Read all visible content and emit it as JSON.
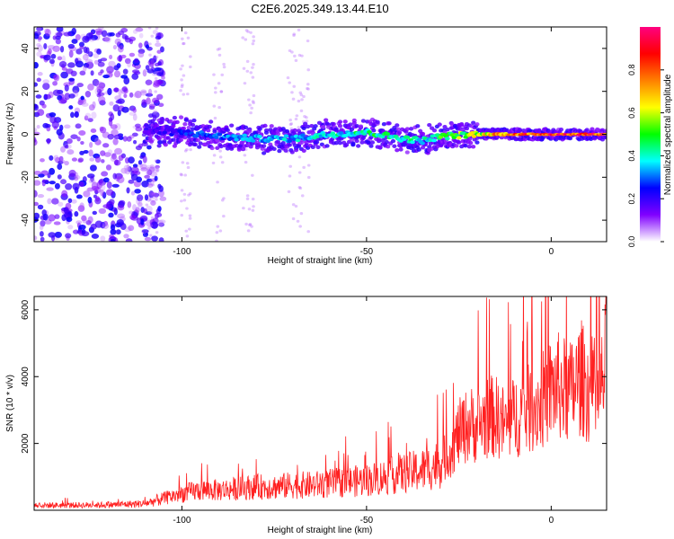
{
  "figure": {
    "title": "C2E6.2025.349.13.44.E10"
  },
  "chart_data": [
    {
      "type": "heatmap",
      "title": "C2E6.2025.349.13.44.E10",
      "xlabel": "Height of straight line (km)",
      "ylabel": "Frequency (Hz)",
      "xlim": [
        -140,
        15
      ],
      "ylim": [
        -50,
        50
      ],
      "x_ticks": [
        -100,
        -50,
        0
      ],
      "y_ticks": [
        -40,
        -20,
        0,
        20,
        40
      ],
      "x_tick_labels": [
        "-100",
        "-50",
        "0"
      ],
      "y_tick_labels": [
        "-40",
        "-20",
        "0",
        "20",
        "40"
      ],
      "colorbar": {
        "label": "Normalized spectral amplitude",
        "range": [
          0,
          1
        ],
        "ticks": [
          0.0,
          0.2,
          0.4,
          0.6,
          0.8
        ],
        "tick_labels": [
          "0.0",
          "0.2",
          "0.4",
          "0.6",
          "0.8"
        ],
        "colors": [
          "#ffffff",
          "#8000ff",
          "#0000ff",
          "#00ffff",
          "#00ff00",
          "#ffff00",
          "#ff8000",
          "#ff0000",
          "#ff0080"
        ]
      },
      "ridge": {
        "description_points_x": [
          -110,
          -100,
          -90,
          -80,
          -70,
          -60,
          -50,
          -40,
          -35,
          -30,
          -20,
          -10,
          0,
          10,
          15
        ],
        "description_points_freq": [
          1,
          1,
          -1,
          -2,
          -2,
          0,
          1,
          -2,
          -3,
          -1,
          0,
          0,
          0,
          0,
          0
        ],
        "peak_amplitude": [
          0.15,
          0.25,
          0.3,
          0.35,
          0.35,
          0.4,
          0.45,
          0.45,
          0.4,
          0.5,
          0.6,
          0.85,
          0.9,
          0.9,
          0.9
        ]
      },
      "noise_region": {
        "x_start": -140,
        "x_end": -110,
        "amplitude": 0.1
      }
    },
    {
      "type": "line",
      "xlabel": "Height of straight line (km)",
      "ylabel": "SNR (10 * v/v)",
      "xlim": [
        -140,
        15
      ],
      "ylim": [
        0,
        6400
      ],
      "x_ticks": [
        -100,
        -50,
        0
      ],
      "y_ticks": [
        2000,
        4000,
        6000
      ],
      "x_tick_labels": [
        "-100",
        "-50",
        "0"
      ],
      "y_tick_labels": [
        "2000",
        "4000",
        "6000"
      ],
      "series": [
        {
          "name": "SNR",
          "color": "#ff2020",
          "x": [
            -140,
            -130,
            -120,
            -110,
            -105,
            -100,
            -95,
            -90,
            -85,
            -80,
            -75,
            -70,
            -65,
            -60,
            -55,
            -50,
            -45,
            -40,
            -35,
            -30,
            -27,
            -25,
            -22,
            -20,
            -17,
            -15,
            -12,
            -10,
            -8,
            -5,
            -3,
            0,
            2,
            5,
            7,
            8,
            10,
            12,
            14,
            15
          ],
          "values": [
            150,
            150,
            160,
            200,
            350,
            500,
            600,
            600,
            650,
            700,
            700,
            750,
            750,
            800,
            850,
            900,
            1000,
            1100,
            1200,
            1400,
            1800,
            2300,
            2600,
            2500,
            2800,
            2800,
            2500,
            2800,
            2900,
            3100,
            3200,
            3600,
            3700,
            3500,
            3800,
            4000,
            3600,
            3200,
            3800,
            4700
          ]
        }
      ]
    }
  ]
}
